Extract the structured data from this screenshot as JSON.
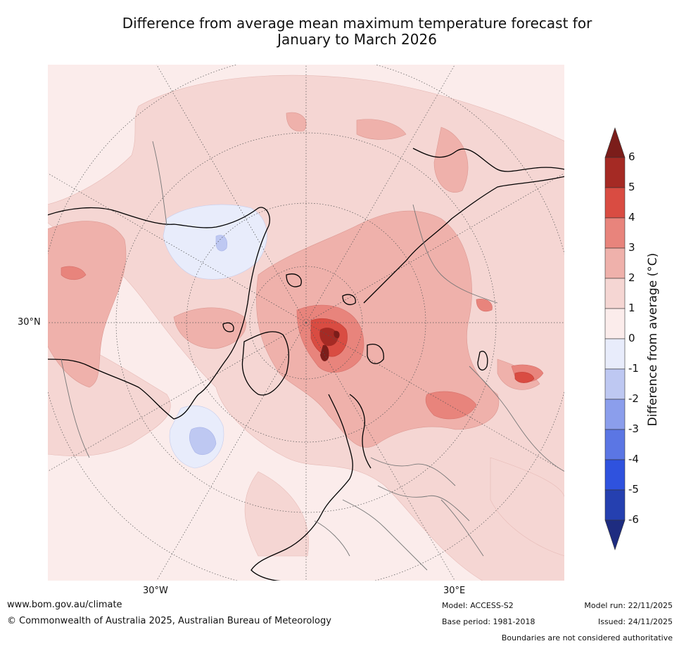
{
  "title_line1": "Difference from average mean maximum temperature forecast for",
  "title_line2": "January to March 2026",
  "map": {
    "lat_label": "30°N",
    "lon_labels": {
      "west": "30°W",
      "east": "30°E"
    },
    "description_regions": [
      "North America",
      "Greenland",
      "Arctic Ocean",
      "Europe",
      "Siberia"
    ]
  },
  "colorbar": {
    "title": "Difference from average (°C)",
    "ticks": [
      "6",
      "5",
      "4",
      "3",
      "2",
      "1",
      "0",
      "-1",
      "-2",
      "-3",
      "-4",
      "-5",
      "-6"
    ],
    "colors": {
      "above6": "#7b1d1a",
      "b5_6": "#a52a24",
      "b4_5": "#d94c42",
      "b3_4": "#e8847c",
      "b2_3": "#efb1ab",
      "b1_2": "#f5d6d3",
      "b0_1": "#fbeceb",
      "bm1_0": "#e8ecfb",
      "bm2_m1": "#bec8f2",
      "bm3_m2": "#8b9eec",
      "bm4_m3": "#5b76e4",
      "bm5_m4": "#2f52de",
      "bm6_m5": "#2540b0",
      "below_m6": "#1e2c80"
    }
  },
  "footer": {
    "website": "www.bom.gov.au/climate",
    "copyright": "© Commonwealth of Australia 2025, Australian Bureau of Meteorology",
    "model": "Model: ACCESS-S2",
    "base_period": "Base period: 1981-2018",
    "model_run": "Model run: 22/11/2025",
    "issued": "Issued: 24/11/2025",
    "boundaries_note": "Boundaries are not considered authoritative"
  }
}
